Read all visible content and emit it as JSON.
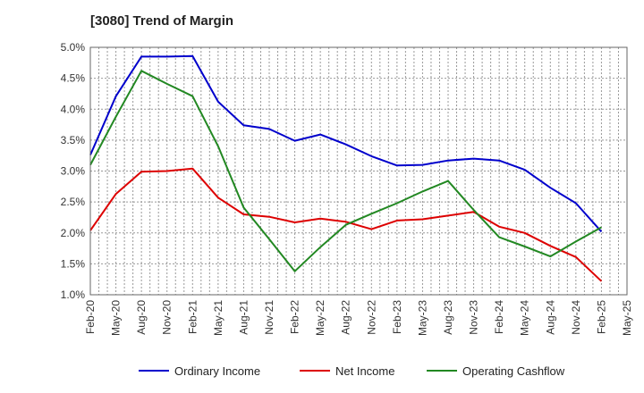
{
  "chart_data": {
    "type": "line",
    "title": "[3080]  Trend of Margin",
    "xlabel": "",
    "ylabel": "",
    "x": [
      "Feb-20",
      "May-20",
      "Aug-20",
      "Nov-20",
      "Feb-21",
      "May-21",
      "Aug-21",
      "Nov-21",
      "Feb-22",
      "May-22",
      "Aug-22",
      "Nov-22",
      "Feb-23",
      "May-23",
      "Aug-23",
      "Nov-23",
      "Feb-24",
      "May-24",
      "Aug-24",
      "Nov-24",
      "Feb-25",
      "May-25"
    ],
    "ylim": [
      1.0,
      5.0
    ],
    "yticks": [
      "1.0%",
      "1.5%",
      "2.0%",
      "2.5%",
      "3.0%",
      "3.5%",
      "4.0%",
      "4.5%",
      "5.0%"
    ],
    "grid": true,
    "legend_position": "bottom",
    "series": [
      {
        "name": "Ordinary Income",
        "color": "#0000cc",
        "values": [
          3.26,
          4.21,
          4.85,
          4.85,
          4.86,
          4.12,
          3.74,
          3.68,
          3.49,
          3.59,
          3.43,
          3.24,
          3.09,
          3.1,
          3.17,
          3.2,
          3.17,
          3.02,
          2.73,
          2.48,
          2.02,
          null
        ]
      },
      {
        "name": "Net Income",
        "color": "#dd0000",
        "values": [
          2.04,
          2.63,
          2.99,
          3.0,
          3.04,
          2.57,
          2.3,
          2.26,
          2.17,
          2.23,
          2.18,
          2.06,
          2.2,
          2.22,
          2.28,
          2.34,
          2.1,
          2.0,
          1.79,
          1.61,
          1.22,
          null
        ]
      },
      {
        "name": "Operating Cashflow",
        "color": "#228822",
        "values": [
          3.1,
          3.88,
          4.62,
          4.41,
          4.21,
          3.4,
          2.41,
          1.9,
          1.38,
          1.77,
          2.13,
          2.31,
          2.48,
          2.67,
          2.84,
          2.37,
          1.93,
          1.78,
          1.62,
          1.86,
          2.09,
          null
        ]
      }
    ]
  }
}
